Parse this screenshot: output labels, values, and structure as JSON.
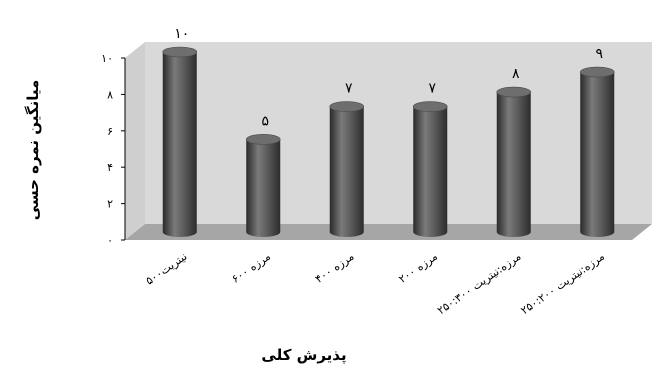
{
  "chart_data": {
    "type": "bar",
    "title": "",
    "xlabel": "پذیرش کلی",
    "ylabel": "میانگین نمره حسی",
    "categories": [
      "نیتریت۵۰۰",
      "مرزه ۶۰۰",
      "مرزه ۴۰۰",
      "مرزه ۲۰۰",
      "مرزه:نیتریت ۲۵۰:۳۰۰",
      "مرزه:نیتریت ۲۵۰:۲۰۰"
    ],
    "values": [
      10,
      5.2,
      7,
      7,
      7.8,
      8.9
    ],
    "data_labels": [
      "۱۰",
      "۵",
      "۷",
      "۷",
      "۸",
      "۹"
    ],
    "ylim": [
      0,
      10
    ],
    "yticks": [
      "۰",
      "۲",
      "۴",
      "۶",
      "۸",
      "۱۰"
    ],
    "ytick_values": [
      0,
      2,
      4,
      6,
      8,
      10
    ],
    "grid": false,
    "legend": "none",
    "colors": {
      "bar": "#5a5a5a",
      "wall": "#d9d9d9",
      "floor": "#a6a6a6"
    }
  }
}
